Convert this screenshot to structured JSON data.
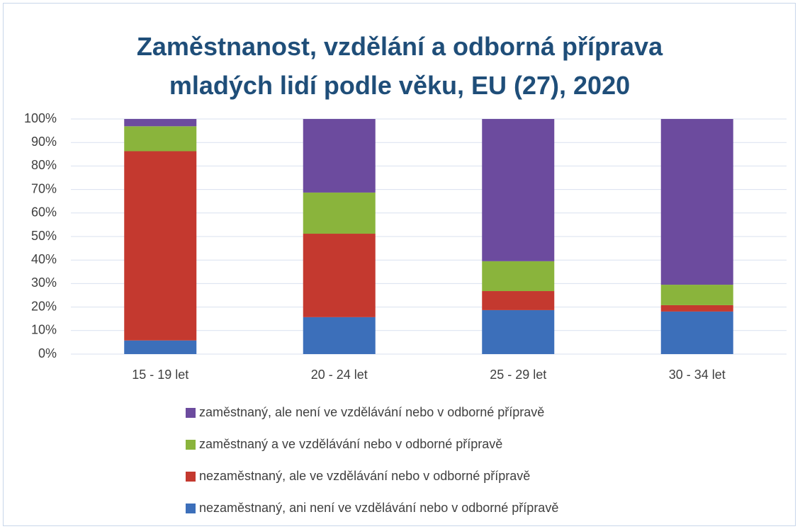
{
  "chart_data": {
    "type": "stacked-bar",
    "title": "Zaměstnanost, vzdělání a odborná příprava mladých lidí podle věku, EU (27), 2020",
    "categories": [
      "15 - 19 let",
      "20 - 24 let",
      "25 - 29 let",
      "30 - 34 let"
    ],
    "series": [
      {
        "name": "nezaměstnaný, ani není ve vzdělávání nebo v odborné přípravě",
        "color": "#3c6fba",
        "values": [
          5.8,
          15.7,
          18.7,
          18.1
        ]
      },
      {
        "name": "nezaměstnaný, ale ve vzdělávání nebo v odborné přípravě",
        "color": "#c4392f",
        "values": [
          80.5,
          35.5,
          8.1,
          2.7
        ]
      },
      {
        "name": "zaměstnaný a ve vzdělávání nebo v odborné přípravě",
        "color": "#8ab43c",
        "values": [
          10.6,
          17.5,
          12.7,
          8.7
        ]
      },
      {
        "name": "zaměstnaný, ale není ve vzdělávání nebo v odborné přípravě",
        "color": "#6c4b9e",
        "values": [
          3.1,
          31.3,
          60.5,
          70.5
        ]
      }
    ],
    "ylim": [
      0,
      100
    ],
    "yticks": [
      {
        "value": 0,
        "label": "0%"
      },
      {
        "value": 10,
        "label": "10%"
      },
      {
        "value": 20,
        "label": "20%"
      },
      {
        "value": 30,
        "label": "30%"
      },
      {
        "value": 40,
        "label": "40%"
      },
      {
        "value": 50,
        "label": "50%"
      },
      {
        "value": 60,
        "label": "60%"
      },
      {
        "value": 70,
        "label": "70%"
      },
      {
        "value": 80,
        "label": "80%"
      },
      {
        "value": 90,
        "label": "90%"
      },
      {
        "value": 100,
        "label": "100%"
      }
    ],
    "grid": true
  }
}
